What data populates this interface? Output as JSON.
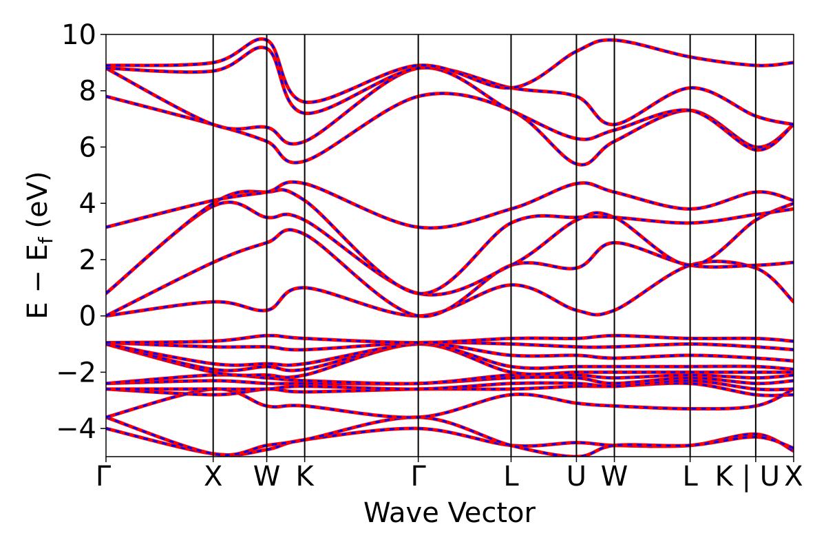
{
  "chart_data": {
    "type": "line",
    "title": "",
    "xlabel": "Wave Vector",
    "ylabel": "E − E_f (eV)",
    "ylabel_parts": {
      "main": "E − E",
      "sub": "f",
      "unit": " (eV)"
    },
    "ylim": [
      -5,
      10
    ],
    "yticks": [
      10,
      8,
      6,
      4,
      2,
      0,
      -2,
      -4
    ],
    "ytick_labels": [
      "10",
      "8",
      "6",
      "4",
      "2",
      "0",
      "−2",
      "−4"
    ],
    "kpath": [
      {
        "label": "Γ",
        "x": 0.0
      },
      {
        "label": "X",
        "x": 1.0
      },
      {
        "label": "W",
        "x": 1.5
      },
      {
        "label": "K",
        "x": 1.854
      },
      {
        "label": "Γ",
        "x": 2.914
      },
      {
        "label": "L",
        "x": 3.78
      },
      {
        "label": "U",
        "x": 4.39
      },
      {
        "label": "W",
        "x": 4.744
      },
      {
        "label": "L",
        "x": 5.451
      },
      {
        "label": "K | U",
        "x": 6.063
      },
      {
        "label": "X",
        "x": 6.417
      }
    ],
    "xlim": [
      0,
      6.417
    ],
    "series_style": {
      "primary_color": "#ff0000",
      "overlay_color": "#0000ff",
      "overlay_dash": "dashed"
    },
    "bands": [
      {
        "values": [
          -4.0,
          -4.9,
          -4.75,
          -4.4,
          -4.0,
          -4.6,
          -4.5,
          -4.6,
          -4.6,
          -4.2,
          -4.8
        ]
      },
      {
        "values": [
          -3.6,
          -4.9,
          -4.6,
          -4.4,
          -3.6,
          -4.6,
          -5.0,
          -4.6,
          -4.6,
          -4.3,
          -4.7
        ]
      },
      {
        "values": [
          -3.6,
          -2.6,
          -3.2,
          -3.2,
          -3.6,
          -2.8,
          -3.1,
          -3.2,
          -3.3,
          -3.2,
          -2.6
        ]
      },
      {
        "values": [
          -2.6,
          -2.8,
          -2.6,
          -2.7,
          -2.6,
          -2.6,
          -2.5,
          -2.5,
          -2.4,
          -2.8,
          -2.8
        ]
      },
      {
        "values": [
          -2.6,
          -2.6,
          -2.6,
          -2.5,
          -2.6,
          -2.4,
          -2.4,
          -2.5,
          -2.3,
          -2.6,
          -2.6
        ]
      },
      {
        "values": [
          -2.4,
          -2.3,
          -2.4,
          -2.4,
          -2.4,
          -2.2,
          -2.2,
          -2.4,
          -2.2,
          -2.4,
          -2.3
        ]
      },
      {
        "values": [
          -2.4,
          -2.1,
          -2.2,
          -2.3,
          -2.4,
          -2.1,
          -2.1,
          -2.2,
          -2.1,
          -2.2,
          -2.1
        ]
      },
      {
        "values": [
          -1.0,
          -2.0,
          -2.1,
          -2.1,
          -1.0,
          -2.0,
          -2.0,
          -2.0,
          -2.0,
          -2.0,
          -2.0
        ]
      },
      {
        "values": [
          -1.0,
          -1.9,
          -1.8,
          -1.9,
          -1.0,
          -1.8,
          -1.8,
          -1.8,
          -1.8,
          -1.8,
          -1.9
        ]
      },
      {
        "values": [
          -1.0,
          -1.7,
          -1.7,
          -1.7,
          -1.0,
          -1.4,
          -1.4,
          -1.5,
          -1.4,
          -1.5,
          -1.6
        ]
      },
      {
        "values": [
          -0.95,
          -1.1,
          -1.1,
          -1.2,
          -0.95,
          -1.0,
          -1.1,
          -1.1,
          -1.0,
          -1.1,
          -1.2
        ]
      },
      {
        "values": [
          -0.95,
          -0.9,
          -0.7,
          -0.8,
          -0.95,
          -0.8,
          -0.8,
          -0.7,
          -0.8,
          -0.8,
          -0.9
        ]
      },
      {
        "values": [
          0.0,
          0.5,
          0.2,
          1.0,
          0.0,
          1.1,
          0.2,
          0.2,
          1.8,
          1.7,
          0.5
        ]
      },
      {
        "values": [
          0.0,
          1.9,
          2.6,
          2.9,
          0.0,
          1.8,
          1.7,
          2.6,
          1.8,
          1.8,
          1.9
        ]
      },
      {
        "values": [
          0.8,
          3.9,
          3.5,
          3.4,
          0.8,
          1.8,
          3.4,
          3.5,
          1.8,
          3.4,
          4.0
        ]
      },
      {
        "values": [
          0.8,
          4.0,
          4.4,
          4.1,
          0.8,
          3.3,
          3.5,
          3.5,
          3.3,
          3.6,
          3.8
        ]
      },
      {
        "values": [
          3.15,
          4.1,
          4.4,
          4.7,
          3.15,
          3.8,
          4.7,
          4.4,
          3.8,
          4.4,
          4.1
        ]
      },
      {
        "values": [
          7.8,
          6.8,
          6.2,
          5.5,
          7.8,
          7.3,
          5.4,
          6.2,
          7.3,
          6.0,
          6.8
        ]
      },
      {
        "values": [
          8.8,
          6.8,
          6.7,
          6.2,
          8.8,
          7.3,
          6.3,
          6.6,
          7.3,
          5.9,
          6.8
        ]
      },
      {
        "values": [
          8.8,
          8.7,
          9.5,
          7.2,
          8.8,
          8.1,
          7.8,
          6.8,
          8.1,
          7.1,
          6.8
        ]
      },
      {
        "values": [
          8.9,
          9.0,
          9.8,
          7.6,
          8.9,
          8.1,
          9.4,
          9.8,
          9.2,
          8.9,
          9.0
        ]
      }
    ]
  }
}
